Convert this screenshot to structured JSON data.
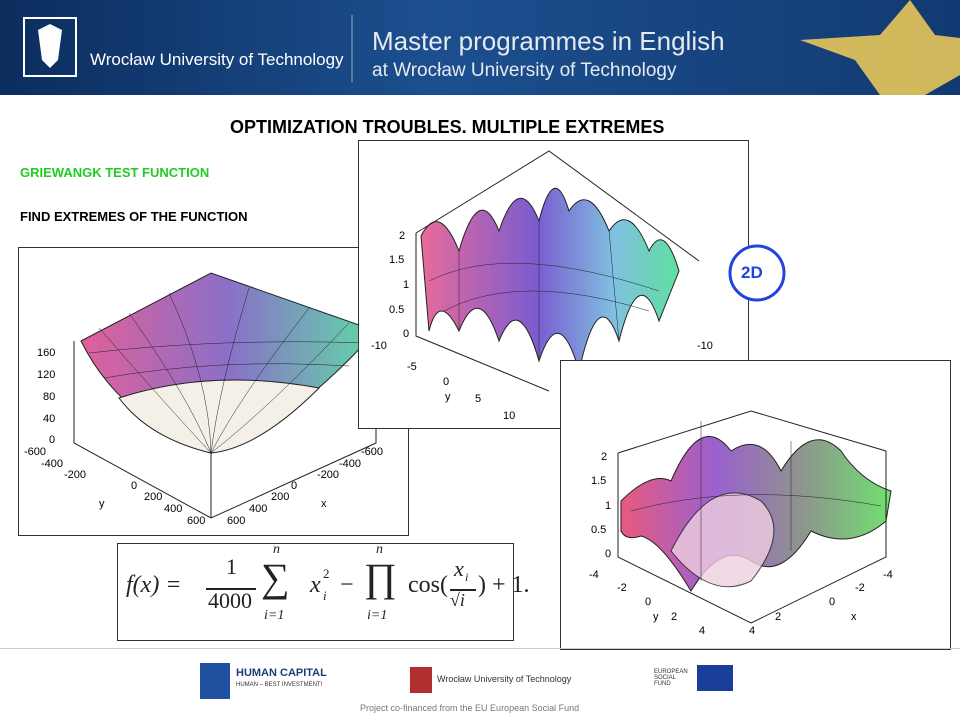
{
  "header": {
    "logo_text": "Wrocław University of Technology",
    "title": "Master programmes in English",
    "subtitle": "at Wrocław University of Technology"
  },
  "title": "OPTIMIZATION TROUBLES.  MULTIPLE EXTREMES",
  "labels": {
    "function_name": "GRIEWANGK TEST FUNCTION",
    "task": "FIND EXTREMES OF THE FUNCTION",
    "badge": "2D"
  },
  "plots": [
    {
      "z_ticks": [
        "160",
        "120",
        "80",
        "40",
        "0"
      ],
      "y_ticks": [
        "-600",
        "-400",
        "-200",
        "0",
        "200",
        "400",
        "600"
      ],
      "x_ticks": [
        "600",
        "400",
        "200",
        "0",
        "-200",
        "-400",
        "-600"
      ],
      "y_label": "y",
      "x_label": "x"
    },
    {
      "z_ticks": [
        "2",
        "1.5",
        "1",
        "0.5",
        "0"
      ],
      "y_ticks": [
        "-10",
        "-5",
        "0",
        "5",
        "10"
      ],
      "x_ticks": [
        "-10"
      ],
      "y_label": "y"
    },
    {
      "z_ticks": [
        "2",
        "1.5",
        "1",
        "0.5",
        "0"
      ],
      "y_ticks": [
        "-4",
        "-2",
        "0",
        "2",
        "4"
      ],
      "x_ticks": [
        "4",
        "2",
        "0",
        "-2",
        "-4"
      ],
      "y_label": "y",
      "x_label": "x"
    }
  ],
  "formula": {
    "lhs": "f(x) =",
    "num": "1",
    "den": "4000",
    "sum": "∑",
    "sum_top": "n",
    "sum_bottom": "i=1",
    "term": "x",
    "term_sub": "i",
    "term_sup": "2",
    "minus": "−",
    "prod": "∏",
    "prod_top": "n",
    "prod_bottom": "i=1",
    "cos": "cos(",
    "cos_num": "x",
    "cos_sub": "i",
    "cos_den": "√i",
    "tail": ") + 1."
  },
  "footer": {
    "hc_title": "HUMAN CAPITAL",
    "hc_sub": "HUMAN – BEST INVESTMENT!",
    "uni": "Wrocław University of Technology",
    "esf": "EUROPEAN SOCIAL FUND",
    "note": "Project co-financed from the EU European Social Fund"
  }
}
